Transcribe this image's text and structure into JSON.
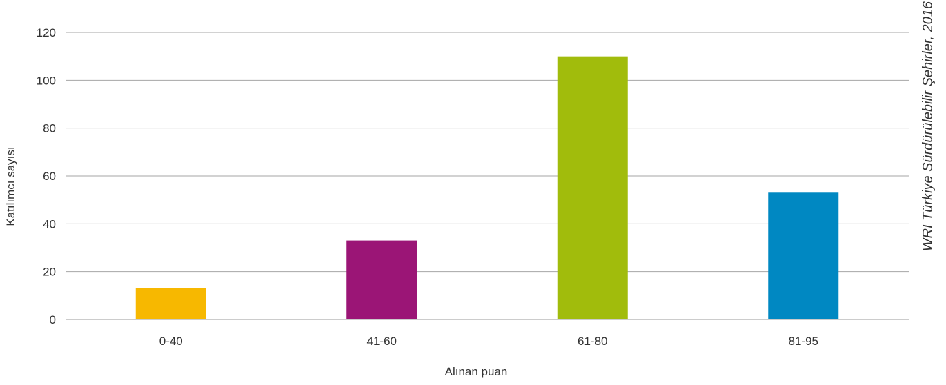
{
  "chart_data": {
    "type": "bar",
    "categories": [
      "0-40",
      "41-60",
      "61-80",
      "81-95"
    ],
    "values": [
      13,
      33,
      110,
      53
    ],
    "colors": [
      "#F7B800",
      "#9B1576",
      "#A1BC0C",
      "#0088C2"
    ],
    "title": "",
    "xlabel": "Alınan puan",
    "ylabel": "Katılımcı sayısı",
    "ylim": [
      0,
      120
    ],
    "yticks": [
      0,
      20,
      40,
      60,
      80,
      100,
      120
    ],
    "grid": true,
    "legend": "none",
    "source": "WRI Türkiye Sürdürülebilir Şehirler, 2016"
  }
}
